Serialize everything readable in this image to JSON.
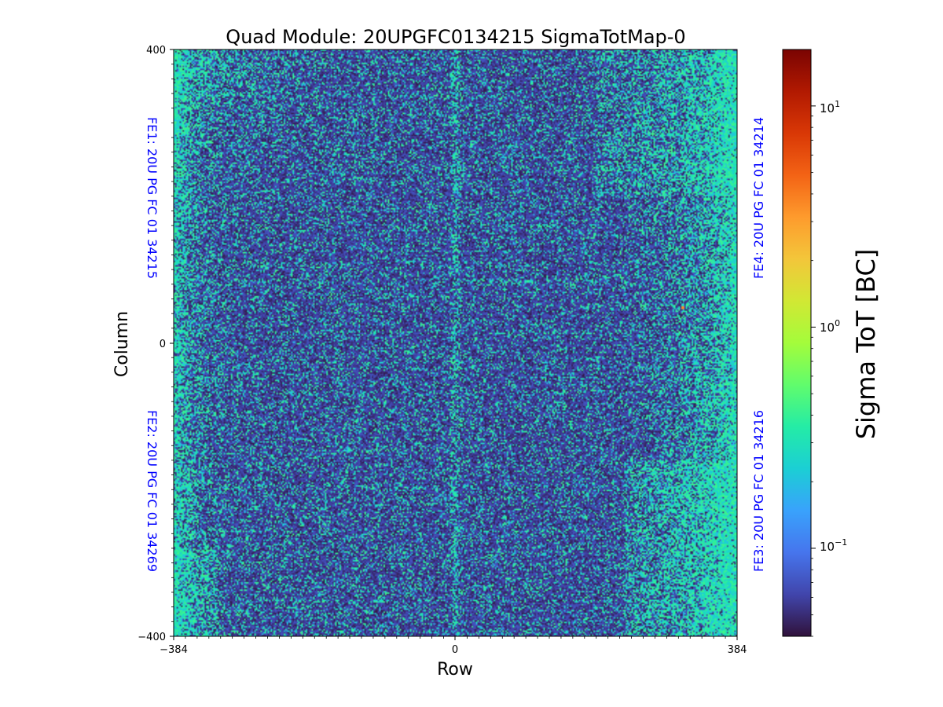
{
  "chart_data": {
    "type": "heatmap",
    "title": "Quad Module: 20UPGFC0134215 SigmaTotMap-0",
    "xlabel": "Row",
    "ylabel": "Column",
    "xlim": [
      -384,
      384
    ],
    "ylim": [
      -400,
      400
    ],
    "x_ticks": [
      -384,
      0,
      384
    ],
    "y_ticks": [
      -400,
      0,
      400
    ],
    "x_tick_labels": [
      "−384",
      "0",
      "384"
    ],
    "y_tick_labels": [
      "−400",
      "0",
      "400"
    ],
    "colorbar": {
      "label": "Sigma ToT [BC]",
      "scale": "log",
      "colormap": "turbo",
      "range": [
        0.04,
        18
      ],
      "ticks": [
        0.1,
        1,
        10
      ],
      "tick_labels": {
        "base": [
          "10",
          "10",
          "10"
        ],
        "exp": [
          "−1",
          "0",
          "1"
        ]
      }
    },
    "chip_labels": [
      {
        "text": "FE1: 20U PG FC 01 34215",
        "quadrant": "top-left"
      },
      {
        "text": "FE2: 20U PG FC 01 34269",
        "quadrant": "bottom-left"
      },
      {
        "text": "FE3: 20U PG FC 01 34216",
        "quadrant": "bottom-right"
      },
      {
        "text": "FE4: 20U PG FC 01 34214",
        "quadrant": "top-right"
      }
    ],
    "chip_label_color": "#0000ff",
    "typical_values": {
      "dark_background": 0.05,
      "noisy_band": 0.3
    },
    "hot_pixel": {
      "row": 310,
      "column": 50,
      "value": 3.5
    }
  }
}
